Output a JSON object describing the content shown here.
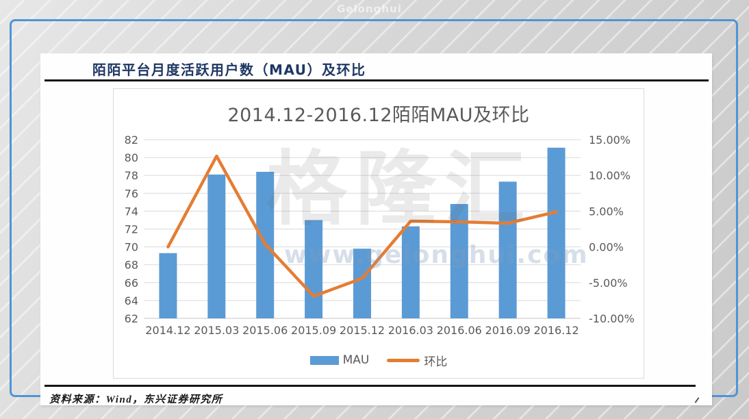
{
  "page": {
    "top_watermark": "Gelonghui"
  },
  "header": {
    "title": "陌陌平台月度活跃用户数（MAU）及环比"
  },
  "watermark": {
    "brand": "格隆汇",
    "url": "www.gelonghui.com"
  },
  "footer": {
    "source": "资料来源：Wind，东兴证券研究所"
  },
  "chart_data": {
    "type": "bar+line combo",
    "title": "2014.12-2016.12陌陌MAU及环比",
    "categories": [
      "2014.12",
      "2015.03",
      "2015.06",
      "2015.09",
      "2015.12",
      "2016.03",
      "2016.06",
      "2016.09",
      "2016.12"
    ],
    "series": [
      {
        "name": "MAU",
        "type": "bar",
        "axis": "left",
        "color": "#5b9bd5",
        "values": [
          69.3,
          78.1,
          78.4,
          73.0,
          69.8,
          72.3,
          74.8,
          77.3,
          81.1
        ]
      },
      {
        "name": "环比",
        "type": "line",
        "axis": "right",
        "color": "#e47d33",
        "values_percent": [
          0.0,
          12.7,
          0.4,
          -6.9,
          -4.4,
          3.6,
          3.5,
          3.3,
          4.9
        ]
      }
    ],
    "left_axis": {
      "min": 62,
      "max": 82,
      "step": 2,
      "tick_labels": [
        "82",
        "80",
        "78",
        "76",
        "74",
        "72",
        "70",
        "68",
        "66",
        "64",
        "62"
      ]
    },
    "right_axis": {
      "min": -10,
      "max": 15,
      "tick_values": [
        15,
        10,
        5,
        0,
        -5,
        -10
      ],
      "tick_labels": [
        "15.00%",
        "10.00%",
        "5.00%",
        "0.00%",
        "-5.00%",
        "-10.00%"
      ]
    },
    "legend": {
      "position": "bottom-center",
      "items": [
        "MAU",
        "环比"
      ]
    },
    "grid": "horizontal",
    "colors": {
      "bar": "#5b9bd5",
      "line": "#e47d33",
      "gridline": "#d9d9d9",
      "axis_text": "#595959",
      "title_text": "#595959"
    }
  },
  "frame_colors": {
    "card_border": "#4f94d5",
    "header_title_text": "#1f3864",
    "divider": "#141414"
  }
}
